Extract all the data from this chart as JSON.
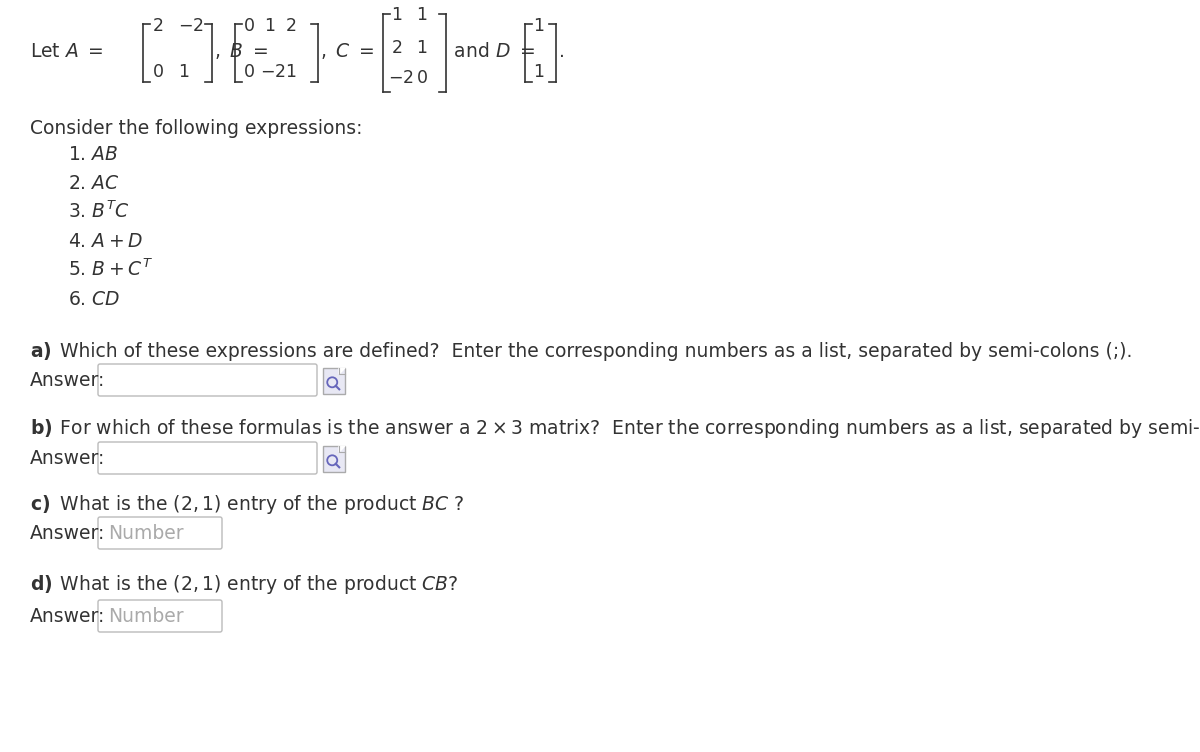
{
  "bg_color": "#ffffff",
  "text_color": "#333333",
  "light_gray": "#aaaaaa",
  "box_edge": "#bbbbbb",
  "icon_face": "#e8e8f4",
  "icon_edge": "#aaaaab",
  "font_size": 13.5,
  "font_size_small": 12,
  "consider_text": "Consider the following expressions:",
  "answer_label": "Answer:",
  "number_placeholder": "Number",
  "q_a_bold": "a)",
  "q_a_rest": " Which of these expressions are defined?  Enter the corresponding numbers as a list, separated by semi-colons (;).",
  "q_b_bold": "b)",
  "q_b_rest": " For which of these formulas is the answer a $2 \\times 3$ matrix?  Enter the corresponding numbers as a list, separated by semi-colons (;).",
  "q_c_bold": "c)",
  "q_c_rest": " What is the $(2, 1)$ entry of the product $BC$ ?",
  "q_d_bold": "d)",
  "q_d_rest": " What is the $(2, 1)$ entry of the product $CB$?"
}
